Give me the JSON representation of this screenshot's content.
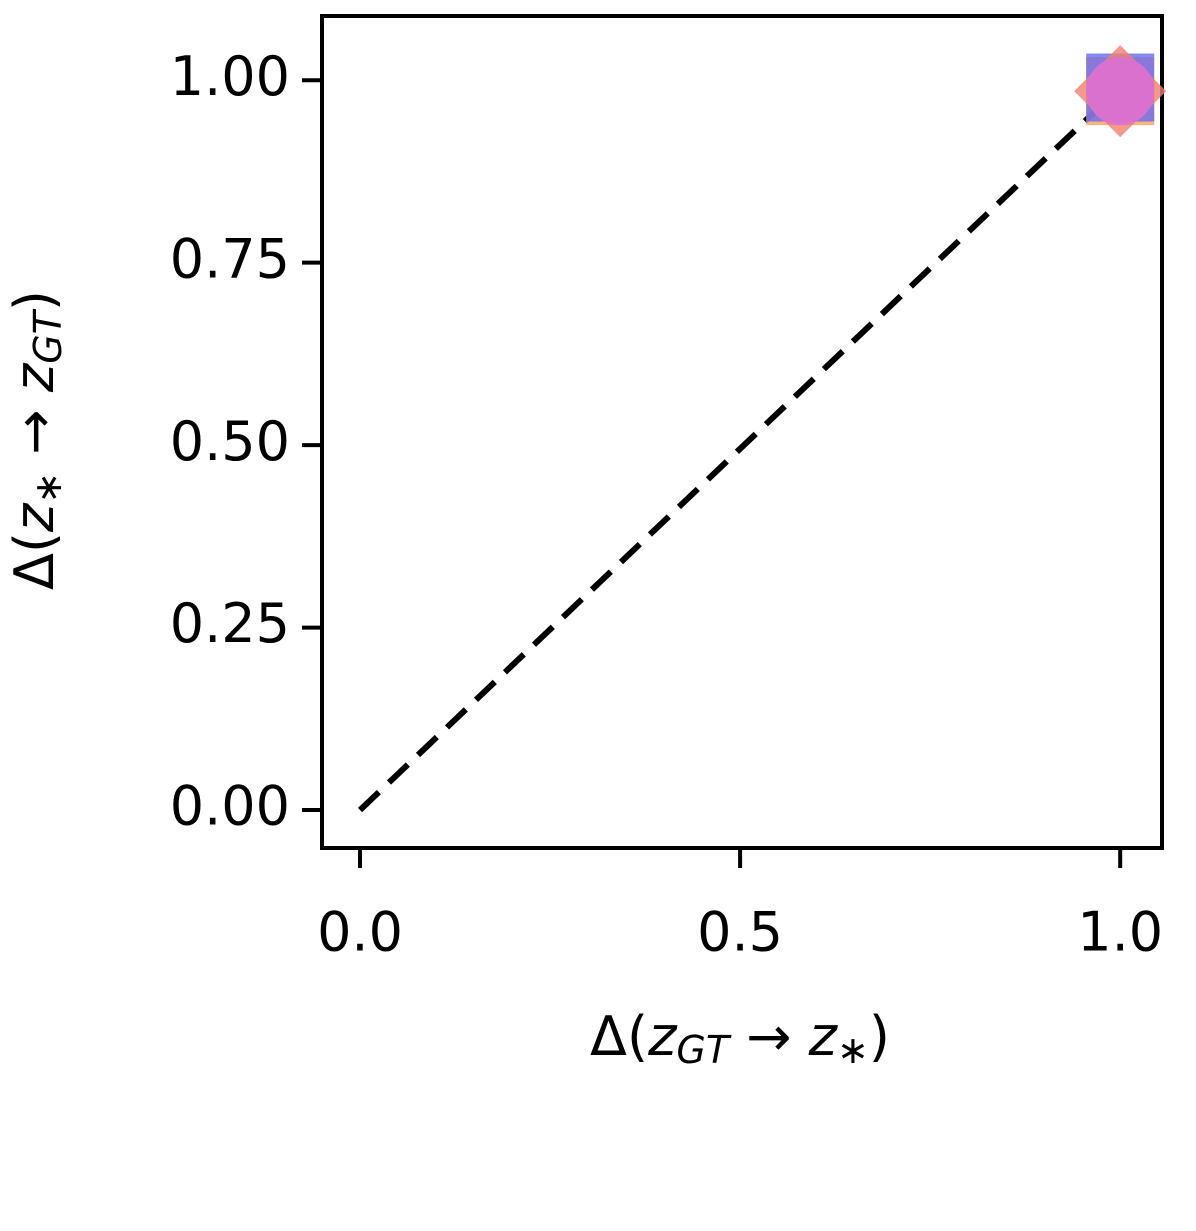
{
  "chart_data": {
    "type": "scatter",
    "xlim": [
      -0.05,
      1.055
    ],
    "ylim": [
      -0.052,
      1.088
    ],
    "xticks": [
      {
        "value": 0,
        "label": "0.0"
      },
      {
        "value": 0.5,
        "label": "0.5"
      },
      {
        "value": 1,
        "label": "1.0"
      }
    ],
    "yticks": [
      {
        "value": 0,
        "label": "0.00"
      },
      {
        "value": 0.25,
        "label": "0.25"
      },
      {
        "value": 0.5,
        "label": "0.50"
      },
      {
        "value": 0.75,
        "label": "0.75"
      },
      {
        "value": 1,
        "label": "1.00"
      }
    ],
    "x_label_parts": [
      {
        "text": "Δ(",
        "style": "normal"
      },
      {
        "text": "z",
        "style": "italic"
      },
      {
        "text": "GT",
        "style": "sub"
      },
      {
        "text": " → ",
        "style": "normal"
      },
      {
        "text": "z",
        "style": "italic"
      },
      {
        "text": "∗",
        "style": "sub"
      },
      {
        "text": ")",
        "style": "normal"
      }
    ],
    "y_label_parts": [
      {
        "text": "Δ(",
        "style": "normal"
      },
      {
        "text": "z",
        "style": "italic"
      },
      {
        "text": "∗",
        "style": "sub"
      },
      {
        "text": " → ",
        "style": "normal"
      },
      {
        "text": "z",
        "style": "italic"
      },
      {
        "text": "GT",
        "style": "sub"
      },
      {
        "text": ")",
        "style": "normal"
      }
    ],
    "reference_line": {
      "x": [
        0,
        1
      ],
      "y": [
        0,
        0.99
      ],
      "color": "#000000",
      "dashed": true
    },
    "series": [
      {
        "color": "#f4a460",
        "marker": "square",
        "x": [
          1
        ],
        "y": [
          0.985
        ]
      },
      {
        "color": "#6a6af0",
        "marker": "square",
        "x": [
          1
        ],
        "y": [
          0.99
        ]
      },
      {
        "color": "#f08070",
        "marker": "diamond",
        "x": [
          1
        ],
        "y": [
          0.985
        ]
      },
      {
        "color": "#da70d6",
        "marker": "circle",
        "x": [
          1
        ],
        "y": [
          0.985
        ]
      }
    ]
  }
}
